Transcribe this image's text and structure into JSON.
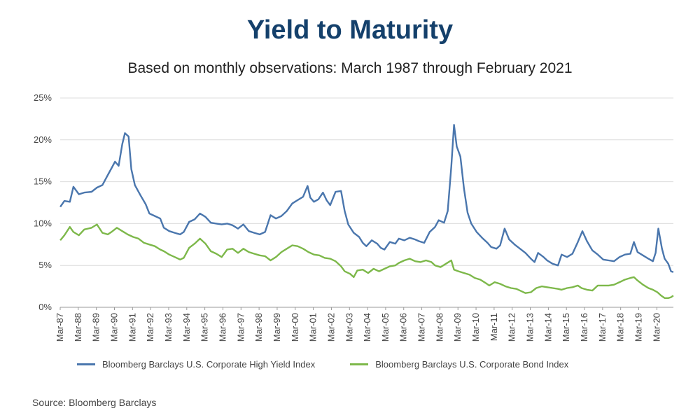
{
  "title": "Yield to Maturity",
  "subtitle": "Based on monthly observations: March 1987 through February 2021",
  "source": "Source: Bloomberg Barclays",
  "chart_data": {
    "type": "line",
    "title": "Yield to Maturity",
    "subtitle": "Based on monthly observations: March 1987 through February 2021",
    "y_ticks": [
      "0%",
      "5%",
      "10%",
      "15%",
      "20%",
      "25%"
    ],
    "x_ticks": [
      "Mar-87",
      "Mar-88",
      "Mar-89",
      "Mar-90",
      "Mar-91",
      "Mar-92",
      "Mar-93",
      "Mar-94",
      "Mar-95",
      "Mar-96",
      "Mar-97",
      "Mar-98",
      "Mar-99",
      "Mar-00",
      "Mar-01",
      "Mar-02",
      "Mar-03",
      "Mar-04",
      "Mar-05",
      "Mar-06",
      "Mar-07",
      "Mar-08",
      "Mar-09",
      "Mar-10",
      "Mar-11",
      "Mar-12",
      "Mar-13",
      "Mar-14",
      "Mar-15",
      "Mar-16",
      "Mar-17",
      "Mar-18",
      "Mar-19",
      "Mar-20"
    ],
    "xlim": [
      1987.167,
      2021.083
    ],
    "ylim": [
      0,
      25
    ],
    "y_unit": "%",
    "grid": true,
    "legend": "bottom",
    "series": [
      {
        "name": "Bloomberg Barclays U.S. Corporate High Yield Index",
        "color": "#4a76ad",
        "points": [
          [
            1987.17,
            12.0
          ],
          [
            1987.4,
            12.7
          ],
          [
            1987.7,
            12.6
          ],
          [
            1987.9,
            14.4
          ],
          [
            1988.2,
            13.5
          ],
          [
            1988.5,
            13.7
          ],
          [
            1988.9,
            13.8
          ],
          [
            1989.2,
            14.3
          ],
          [
            1989.5,
            14.6
          ],
          [
            1989.8,
            15.8
          ],
          [
            1990.0,
            16.6
          ],
          [
            1990.2,
            17.4
          ],
          [
            1990.4,
            16.9
          ],
          [
            1990.6,
            19.5
          ],
          [
            1990.75,
            20.8
          ],
          [
            1990.95,
            20.4
          ],
          [
            1991.1,
            16.5
          ],
          [
            1991.3,
            14.6
          ],
          [
            1991.6,
            13.4
          ],
          [
            1991.9,
            12.3
          ],
          [
            1992.1,
            11.2
          ],
          [
            1992.4,
            10.9
          ],
          [
            1992.7,
            10.6
          ],
          [
            1992.9,
            9.5
          ],
          [
            1993.2,
            9.1
          ],
          [
            1993.5,
            8.9
          ],
          [
            1993.8,
            8.7
          ],
          [
            1994.0,
            9.0
          ],
          [
            1994.3,
            10.2
          ],
          [
            1994.6,
            10.5
          ],
          [
            1994.9,
            11.2
          ],
          [
            1995.2,
            10.8
          ],
          [
            1995.5,
            10.1
          ],
          [
            1995.8,
            10.0
          ],
          [
            1996.1,
            9.9
          ],
          [
            1996.4,
            10.0
          ],
          [
            1996.7,
            9.8
          ],
          [
            1997.0,
            9.4
          ],
          [
            1997.3,
            9.9
          ],
          [
            1997.6,
            9.1
          ],
          [
            1997.9,
            8.9
          ],
          [
            1998.2,
            8.7
          ],
          [
            1998.5,
            9.0
          ],
          [
            1998.8,
            11.0
          ],
          [
            1999.1,
            10.6
          ],
          [
            1999.4,
            10.9
          ],
          [
            1999.7,
            11.5
          ],
          [
            2000.0,
            12.4
          ],
          [
            2000.3,
            12.8
          ],
          [
            2000.6,
            13.2
          ],
          [
            2000.85,
            14.5
          ],
          [
            2001.0,
            13.1
          ],
          [
            2001.2,
            12.6
          ],
          [
            2001.45,
            12.9
          ],
          [
            2001.7,
            13.7
          ],
          [
            2001.9,
            12.8
          ],
          [
            2002.1,
            12.2
          ],
          [
            2002.4,
            13.8
          ],
          [
            2002.7,
            13.9
          ],
          [
            2002.9,
            11.5
          ],
          [
            2003.1,
            9.9
          ],
          [
            2003.4,
            8.9
          ],
          [
            2003.7,
            8.4
          ],
          [
            2003.9,
            7.7
          ],
          [
            2004.1,
            7.3
          ],
          [
            2004.4,
            8.0
          ],
          [
            2004.7,
            7.6
          ],
          [
            2004.9,
            7.1
          ],
          [
            2005.1,
            6.9
          ],
          [
            2005.4,
            7.8
          ],
          [
            2005.7,
            7.6
          ],
          [
            2005.9,
            8.2
          ],
          [
            2006.2,
            8.0
          ],
          [
            2006.5,
            8.3
          ],
          [
            2006.8,
            8.1
          ],
          [
            2007.0,
            7.9
          ],
          [
            2007.3,
            7.7
          ],
          [
            2007.6,
            9.0
          ],
          [
            2007.9,
            9.6
          ],
          [
            2008.1,
            10.4
          ],
          [
            2008.4,
            10.1
          ],
          [
            2008.6,
            11.5
          ],
          [
            2008.8,
            16.8
          ],
          [
            2008.95,
            21.8
          ],
          [
            2009.1,
            19.2
          ],
          [
            2009.3,
            18.0
          ],
          [
            2009.5,
            14.2
          ],
          [
            2009.7,
            11.3
          ],
          [
            2009.9,
            10.0
          ],
          [
            2010.2,
            9.0
          ],
          [
            2010.5,
            8.3
          ],
          [
            2010.8,
            7.7
          ],
          [
            2011.0,
            7.2
          ],
          [
            2011.3,
            7.0
          ],
          [
            2011.5,
            7.4
          ],
          [
            2011.75,
            9.4
          ],
          [
            2012.0,
            8.1
          ],
          [
            2012.3,
            7.5
          ],
          [
            2012.6,
            7.0
          ],
          [
            2012.9,
            6.5
          ],
          [
            2013.2,
            5.8
          ],
          [
            2013.4,
            5.4
          ],
          [
            2013.6,
            6.5
          ],
          [
            2013.9,
            6.0
          ],
          [
            2014.1,
            5.6
          ],
          [
            2014.4,
            5.2
          ],
          [
            2014.7,
            5.0
          ],
          [
            2014.9,
            6.3
          ],
          [
            2015.2,
            6.0
          ],
          [
            2015.5,
            6.4
          ],
          [
            2015.8,
            7.8
          ],
          [
            2016.05,
            9.1
          ],
          [
            2016.3,
            7.9
          ],
          [
            2016.6,
            6.8
          ],
          [
            2016.9,
            6.3
          ],
          [
            2017.2,
            5.7
          ],
          [
            2017.5,
            5.6
          ],
          [
            2017.8,
            5.5
          ],
          [
            2018.1,
            6.0
          ],
          [
            2018.4,
            6.3
          ],
          [
            2018.7,
            6.4
          ],
          [
            2018.9,
            7.8
          ],
          [
            2019.1,
            6.6
          ],
          [
            2019.4,
            6.2
          ],
          [
            2019.7,
            5.8
          ],
          [
            2019.95,
            5.5
          ],
          [
            2020.1,
            6.5
          ],
          [
            2020.25,
            9.4
          ],
          [
            2020.45,
            7.0
          ],
          [
            2020.6,
            5.8
          ],
          [
            2020.8,
            5.2
          ],
          [
            2020.95,
            4.3
          ],
          [
            2021.08,
            4.2
          ]
        ]
      },
      {
        "name": "Bloomberg Barclays U.S. Corporate Bond Index",
        "color": "#7db84a",
        "points": [
          [
            1987.17,
            8.0
          ],
          [
            1987.4,
            8.6
          ],
          [
            1987.7,
            9.6
          ],
          [
            1987.9,
            9.0
          ],
          [
            1988.2,
            8.6
          ],
          [
            1988.5,
            9.3
          ],
          [
            1988.9,
            9.5
          ],
          [
            1989.2,
            9.9
          ],
          [
            1989.5,
            8.9
          ],
          [
            1989.8,
            8.7
          ],
          [
            1990.0,
            9.0
          ],
          [
            1990.3,
            9.5
          ],
          [
            1990.6,
            9.1
          ],
          [
            1990.9,
            8.7
          ],
          [
            1991.2,
            8.4
          ],
          [
            1991.5,
            8.2
          ],
          [
            1991.8,
            7.7
          ],
          [
            1992.1,
            7.5
          ],
          [
            1992.4,
            7.3
          ],
          [
            1992.7,
            6.9
          ],
          [
            1992.9,
            6.7
          ],
          [
            1993.2,
            6.3
          ],
          [
            1993.5,
            6.0
          ],
          [
            1993.8,
            5.7
          ],
          [
            1994.0,
            5.9
          ],
          [
            1994.3,
            7.1
          ],
          [
            1994.6,
            7.6
          ],
          [
            1994.9,
            8.2
          ],
          [
            1995.2,
            7.6
          ],
          [
            1995.5,
            6.7
          ],
          [
            1995.8,
            6.4
          ],
          [
            1996.1,
            6.0
          ],
          [
            1996.4,
            6.9
          ],
          [
            1996.7,
            7.0
          ],
          [
            1997.0,
            6.5
          ],
          [
            1997.3,
            7.0
          ],
          [
            1997.6,
            6.6
          ],
          [
            1997.9,
            6.4
          ],
          [
            1998.2,
            6.2
          ],
          [
            1998.5,
            6.1
          ],
          [
            1998.8,
            5.6
          ],
          [
            1999.1,
            6.0
          ],
          [
            1999.4,
            6.6
          ],
          [
            1999.7,
            7.0
          ],
          [
            2000.0,
            7.4
          ],
          [
            2000.3,
            7.3
          ],
          [
            2000.6,
            7.0
          ],
          [
            2000.9,
            6.6
          ],
          [
            2001.2,
            6.3
          ],
          [
            2001.5,
            6.2
          ],
          [
            2001.8,
            5.9
          ],
          [
            2002.1,
            5.8
          ],
          [
            2002.4,
            5.5
          ],
          [
            2002.7,
            4.9
          ],
          [
            2002.9,
            4.3
          ],
          [
            2003.2,
            4.0
          ],
          [
            2003.4,
            3.6
          ],
          [
            2003.6,
            4.4
          ],
          [
            2003.9,
            4.5
          ],
          [
            2004.2,
            4.1
          ],
          [
            2004.5,
            4.6
          ],
          [
            2004.8,
            4.3
          ],
          [
            2005.1,
            4.6
          ],
          [
            2005.4,
            4.9
          ],
          [
            2005.7,
            5.0
          ],
          [
            2005.9,
            5.3
          ],
          [
            2006.2,
            5.6
          ],
          [
            2006.5,
            5.8
          ],
          [
            2006.8,
            5.5
          ],
          [
            2007.1,
            5.4
          ],
          [
            2007.4,
            5.6
          ],
          [
            2007.7,
            5.4
          ],
          [
            2007.9,
            5.0
          ],
          [
            2008.2,
            4.8
          ],
          [
            2008.5,
            5.2
          ],
          [
            2008.8,
            5.6
          ],
          [
            2008.95,
            4.5
          ],
          [
            2009.2,
            4.3
          ],
          [
            2009.5,
            4.1
          ],
          [
            2009.8,
            3.9
          ],
          [
            2010.1,
            3.5
          ],
          [
            2010.4,
            3.3
          ],
          [
            2010.7,
            2.9
          ],
          [
            2010.9,
            2.6
          ],
          [
            2011.2,
            3.0
          ],
          [
            2011.5,
            2.8
          ],
          [
            2011.8,
            2.5
          ],
          [
            2012.1,
            2.3
          ],
          [
            2012.4,
            2.2
          ],
          [
            2012.7,
            1.9
          ],
          [
            2012.9,
            1.7
          ],
          [
            2013.2,
            1.8
          ],
          [
            2013.5,
            2.3
          ],
          [
            2013.8,
            2.5
          ],
          [
            2014.1,
            2.4
          ],
          [
            2014.4,
            2.3
          ],
          [
            2014.7,
            2.2
          ],
          [
            2014.9,
            2.1
          ],
          [
            2015.2,
            2.3
          ],
          [
            2015.5,
            2.4
          ],
          [
            2015.8,
            2.6
          ],
          [
            2016.0,
            2.3
          ],
          [
            2016.3,
            2.1
          ],
          [
            2016.6,
            2.0
          ],
          [
            2016.9,
            2.6
          ],
          [
            2017.2,
            2.6
          ],
          [
            2017.5,
            2.6
          ],
          [
            2017.8,
            2.7
          ],
          [
            2018.1,
            3.0
          ],
          [
            2018.4,
            3.3
          ],
          [
            2018.7,
            3.5
          ],
          [
            2018.9,
            3.6
          ],
          [
            2019.1,
            3.2
          ],
          [
            2019.4,
            2.7
          ],
          [
            2019.7,
            2.3
          ],
          [
            2019.95,
            2.1
          ],
          [
            2020.2,
            1.8
          ],
          [
            2020.4,
            1.4
          ],
          [
            2020.6,
            1.1
          ],
          [
            2020.8,
            1.1
          ],
          [
            2020.95,
            1.2
          ],
          [
            2021.08,
            1.4
          ]
        ]
      }
    ]
  }
}
